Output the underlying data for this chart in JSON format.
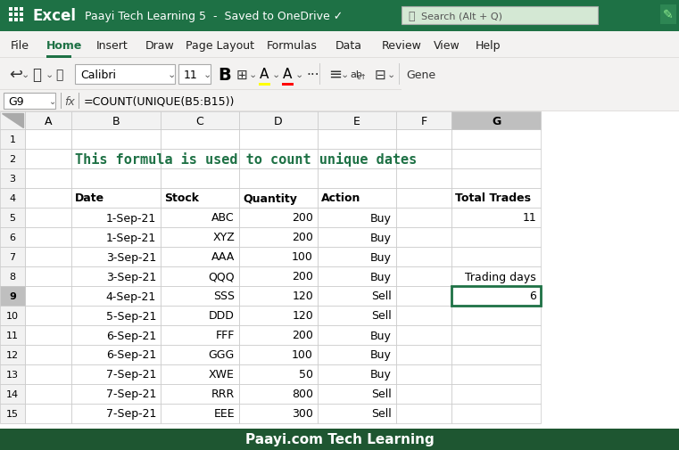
{
  "title_bar_color": "#1e7145",
  "title_bar_text": "Paayi Tech Learning 5  -  Saved to OneDrive ✓",
  "search_box_text": "Search (Alt + Q)",
  "formula_bar_text": "=COUNT(UNIQUE(B5:B15))",
  "cell_ref": "G9",
  "headline_text": "This formula is used to count unique dates",
  "headline_color": "#1e7145",
  "col_headers": [
    "A",
    "B",
    "C",
    "D",
    "E",
    "F",
    "G"
  ],
  "row_headers": [
    "1",
    "2",
    "3",
    "4",
    "5",
    "6",
    "7",
    "8",
    "9",
    "10",
    "11",
    "12",
    "13",
    "14",
    "15"
  ],
  "dates": [
    "1-Sep-21",
    "1-Sep-21",
    "3-Sep-21",
    "3-Sep-21",
    "4-Sep-21",
    "5-Sep-21",
    "6-Sep-21",
    "6-Sep-21",
    "7-Sep-21",
    "7-Sep-21",
    "7-Sep-21"
  ],
  "stocks": [
    "ABC",
    "XYZ",
    "AAA",
    "QQQ",
    "SSS",
    "DDD",
    "FFF",
    "GGG",
    "XWE",
    "RRR",
    "EEE"
  ],
  "quantities": [
    200,
    200,
    100,
    200,
    120,
    120,
    200,
    100,
    50,
    800,
    300
  ],
  "actions": [
    "Buy",
    "Buy",
    "Buy",
    "Buy",
    "Sell",
    "Sell",
    "Buy",
    "Buy",
    "Buy",
    "Sell",
    "Sell"
  ],
  "total_trades_value": "11",
  "trading_days_label": "Trading days",
  "trading_days_value": "6",
  "selected_cell_border": "#1e7145",
  "footer_bg": "#1e5631",
  "footer_text": "Paayi.com Tech Learning",
  "footer_text_color": "#ffffff",
  "grid_color": "#c8c8c8",
  "header_col_bg": "#f2f2f2",
  "header_col_selected_bg": "#bfbfbf",
  "bg_color": "#ffffff",
  "toolbar_font": "Calibri",
  "menu_items": [
    "File",
    "Home",
    "Insert",
    "Draw",
    "Page Layout",
    "Formulas",
    "Data",
    "Review",
    "View",
    "Help"
  ],
  "active_menu": "Home"
}
